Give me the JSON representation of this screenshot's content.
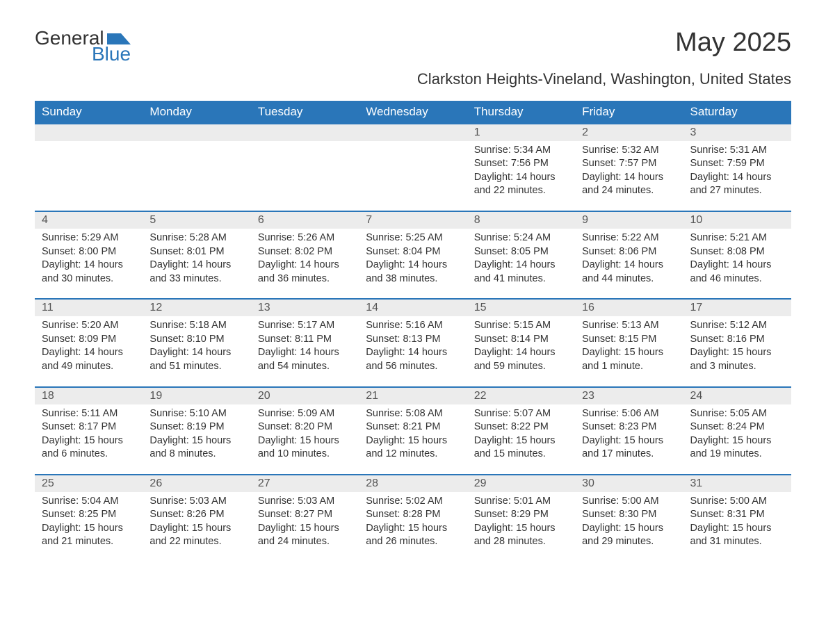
{
  "brand": {
    "word1": "General",
    "word2": "Blue",
    "accent_color": "#2a76b9"
  },
  "title": "May 2025",
  "location": "Clarkston Heights-Vineland, Washington, United States",
  "colors": {
    "header_bg": "#2a76b9",
    "header_text": "#ffffff",
    "daynum_bg": "#ececec",
    "row_border": "#2a76b9",
    "text": "#333333",
    "background": "#ffffff"
  },
  "typography": {
    "title_fontsize": 38,
    "location_fontsize": 22,
    "header_fontsize": 17,
    "daynum_fontsize": 16,
    "detail_fontsize": 14.5,
    "font_family": "Arial"
  },
  "month": {
    "year": 2025,
    "name": "May",
    "first_weekday_index": 4,
    "days_in_month": 31
  },
  "weekdays": [
    "Sunday",
    "Monday",
    "Tuesday",
    "Wednesday",
    "Thursday",
    "Friday",
    "Saturday"
  ],
  "labels": {
    "sunrise": "Sunrise:",
    "sunset": "Sunset:",
    "daylight": "Daylight:"
  },
  "days": {
    "1": {
      "sunrise": "5:34 AM",
      "sunset": "7:56 PM",
      "daylight": "14 hours and 22 minutes."
    },
    "2": {
      "sunrise": "5:32 AM",
      "sunset": "7:57 PM",
      "daylight": "14 hours and 24 minutes."
    },
    "3": {
      "sunrise": "5:31 AM",
      "sunset": "7:59 PM",
      "daylight": "14 hours and 27 minutes."
    },
    "4": {
      "sunrise": "5:29 AM",
      "sunset": "8:00 PM",
      "daylight": "14 hours and 30 minutes."
    },
    "5": {
      "sunrise": "5:28 AM",
      "sunset": "8:01 PM",
      "daylight": "14 hours and 33 minutes."
    },
    "6": {
      "sunrise": "5:26 AM",
      "sunset": "8:02 PM",
      "daylight": "14 hours and 36 minutes."
    },
    "7": {
      "sunrise": "5:25 AM",
      "sunset": "8:04 PM",
      "daylight": "14 hours and 38 minutes."
    },
    "8": {
      "sunrise": "5:24 AM",
      "sunset": "8:05 PM",
      "daylight": "14 hours and 41 minutes."
    },
    "9": {
      "sunrise": "5:22 AM",
      "sunset": "8:06 PM",
      "daylight": "14 hours and 44 minutes."
    },
    "10": {
      "sunrise": "5:21 AM",
      "sunset": "8:08 PM",
      "daylight": "14 hours and 46 minutes."
    },
    "11": {
      "sunrise": "5:20 AM",
      "sunset": "8:09 PM",
      "daylight": "14 hours and 49 minutes."
    },
    "12": {
      "sunrise": "5:18 AM",
      "sunset": "8:10 PM",
      "daylight": "14 hours and 51 minutes."
    },
    "13": {
      "sunrise": "5:17 AM",
      "sunset": "8:11 PM",
      "daylight": "14 hours and 54 minutes."
    },
    "14": {
      "sunrise": "5:16 AM",
      "sunset": "8:13 PM",
      "daylight": "14 hours and 56 minutes."
    },
    "15": {
      "sunrise": "5:15 AM",
      "sunset": "8:14 PM",
      "daylight": "14 hours and 59 minutes."
    },
    "16": {
      "sunrise": "5:13 AM",
      "sunset": "8:15 PM",
      "daylight": "15 hours and 1 minute."
    },
    "17": {
      "sunrise": "5:12 AM",
      "sunset": "8:16 PM",
      "daylight": "15 hours and 3 minutes."
    },
    "18": {
      "sunrise": "5:11 AM",
      "sunset": "8:17 PM",
      "daylight": "15 hours and 6 minutes."
    },
    "19": {
      "sunrise": "5:10 AM",
      "sunset": "8:19 PM",
      "daylight": "15 hours and 8 minutes."
    },
    "20": {
      "sunrise": "5:09 AM",
      "sunset": "8:20 PM",
      "daylight": "15 hours and 10 minutes."
    },
    "21": {
      "sunrise": "5:08 AM",
      "sunset": "8:21 PM",
      "daylight": "15 hours and 12 minutes."
    },
    "22": {
      "sunrise": "5:07 AM",
      "sunset": "8:22 PM",
      "daylight": "15 hours and 15 minutes."
    },
    "23": {
      "sunrise": "5:06 AM",
      "sunset": "8:23 PM",
      "daylight": "15 hours and 17 minutes."
    },
    "24": {
      "sunrise": "5:05 AM",
      "sunset": "8:24 PM",
      "daylight": "15 hours and 19 minutes."
    },
    "25": {
      "sunrise": "5:04 AM",
      "sunset": "8:25 PM",
      "daylight": "15 hours and 21 minutes."
    },
    "26": {
      "sunrise": "5:03 AM",
      "sunset": "8:26 PM",
      "daylight": "15 hours and 22 minutes."
    },
    "27": {
      "sunrise": "5:03 AM",
      "sunset": "8:27 PM",
      "daylight": "15 hours and 24 minutes."
    },
    "28": {
      "sunrise": "5:02 AM",
      "sunset": "8:28 PM",
      "daylight": "15 hours and 26 minutes."
    },
    "29": {
      "sunrise": "5:01 AM",
      "sunset": "8:29 PM",
      "daylight": "15 hours and 28 minutes."
    },
    "30": {
      "sunrise": "5:00 AM",
      "sunset": "8:30 PM",
      "daylight": "15 hours and 29 minutes."
    },
    "31": {
      "sunrise": "5:00 AM",
      "sunset": "8:31 PM",
      "daylight": "15 hours and 31 minutes."
    }
  }
}
